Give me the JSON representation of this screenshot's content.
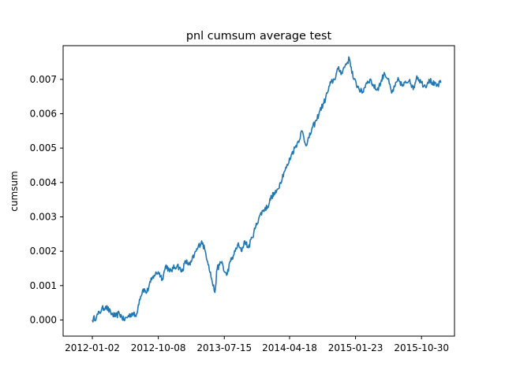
{
  "chart_data": {
    "type": "line",
    "title": "pnl cumsum average test",
    "xlabel": "",
    "ylabel": "cumsum",
    "x_ticks": [
      "2012-01-02",
      "2012-10-08",
      "2013-07-15",
      "2014-04-18",
      "2015-01-23",
      "2015-10-30"
    ],
    "y_ticks": [
      "0.000",
      "0.001",
      "0.002",
      "0.003",
      "0.004",
      "0.005",
      "0.006",
      "0.007"
    ],
    "xlim": [
      "2011-08-31",
      "2016-03-18"
    ],
    "ylim": [
      -0.00047,
      0.00798
    ],
    "grid": false,
    "series": [
      {
        "color": "#1f77b4",
        "x": [
          "2012-01-02",
          "2012-01-20",
          "2012-02-10",
          "2012-02-28",
          "2012-03-20",
          "2012-04-10",
          "2012-04-25",
          "2012-05-15",
          "2012-06-01",
          "2012-06-20",
          "2012-07-05",
          "2012-07-20",
          "2012-08-05",
          "2012-08-20",
          "2012-09-05",
          "2012-09-20",
          "2012-10-08",
          "2012-10-25",
          "2012-11-10",
          "2012-11-25",
          "2012-12-10",
          "2012-12-28",
          "2013-01-15",
          "2013-02-01",
          "2013-02-20",
          "2013-03-10",
          "2013-03-25",
          "2013-04-10",
          "2013-04-25",
          "2013-05-10",
          "2013-05-25",
          "2013-06-05",
          "2013-06-15",
          "2013-06-25",
          "2013-07-05",
          "2013-07-15",
          "2013-07-25",
          "2013-08-10",
          "2013-08-25",
          "2013-09-10",
          "2013-09-25",
          "2013-10-10",
          "2013-10-25",
          "2013-11-10",
          "2013-11-25",
          "2013-12-10",
          "2013-12-28",
          "2014-01-15",
          "2014-02-01",
          "2014-02-20",
          "2014-03-10",
          "2014-03-25",
          "2014-04-10",
          "2014-04-25",
          "2014-05-10",
          "2014-05-25",
          "2014-06-10",
          "2014-06-25",
          "2014-07-10",
          "2014-07-25",
          "2014-08-10",
          "2014-08-25",
          "2014-09-10",
          "2014-09-25",
          "2014-10-10",
          "2014-10-25",
          "2014-11-10",
          "2014-11-25",
          "2014-12-10",
          "2014-12-28",
          "2015-01-15",
          "2015-02-01",
          "2015-02-20",
          "2015-03-10",
          "2015-03-25",
          "2015-04-10",
          "2015-04-25",
          "2015-05-10",
          "2015-05-25",
          "2015-06-10",
          "2015-06-25",
          "2015-07-10",
          "2015-07-25",
          "2015-08-10",
          "2015-08-25",
          "2015-09-10",
          "2015-09-25",
          "2015-10-10",
          "2015-10-30",
          "2015-11-15",
          "2015-12-01",
          "2015-12-15",
          "2016-01-01",
          "2016-01-20"
        ],
        "y": [
          0.0,
          0.0001,
          0.0003,
          0.0004,
          0.0002,
          0.0001,
          0.0002,
          0.0,
          0.0001,
          0.0002,
          0.0001,
          0.0006,
          0.0009,
          0.0008,
          0.0011,
          0.0013,
          0.0014,
          0.0012,
          0.0016,
          0.0014,
          0.0015,
          0.0016,
          0.0014,
          0.0017,
          0.0016,
          0.0019,
          0.0021,
          0.0023,
          0.002,
          0.0016,
          0.0011,
          0.0008,
          0.0015,
          0.0016,
          0.0017,
          0.0014,
          0.0013,
          0.0017,
          0.0019,
          0.0022,
          0.002,
          0.0023,
          0.0021,
          0.0024,
          0.0027,
          0.003,
          0.0032,
          0.0033,
          0.0036,
          0.0037,
          0.004,
          0.0043,
          0.0045,
          0.0048,
          0.005,
          0.0052,
          0.0055,
          0.0051,
          0.0053,
          0.0056,
          0.0058,
          0.0061,
          0.0063,
          0.0066,
          0.0069,
          0.007,
          0.0073,
          0.0072,
          0.0074,
          0.0076,
          0.007,
          0.0068,
          0.0066,
          0.0069,
          0.007,
          0.0068,
          0.0067,
          0.0069,
          0.0072,
          0.007,
          0.0066,
          0.0068,
          0.007,
          0.0068,
          0.0069,
          0.007,
          0.0067,
          0.0071,
          0.0069,
          0.0068,
          0.007,
          0.0069,
          0.0068,
          0.0069
        ]
      }
    ]
  }
}
